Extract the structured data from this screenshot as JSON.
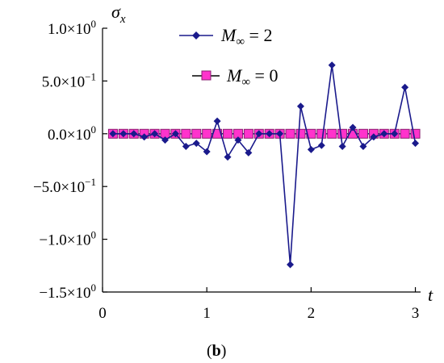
{
  "chart_data": {
    "type": "line",
    "xlabel": "t",
    "ylabel": "σx",
    "ylabel_main": "σ",
    "ylabel_sub": "x",
    "xlim": [
      0,
      3.05
    ],
    "ylim": [
      -1.5,
      1.0
    ],
    "x_ticks": [
      {
        "value": 0,
        "label": "0"
      },
      {
        "value": 1,
        "label": "1"
      },
      {
        "value": 2,
        "label": "2"
      },
      {
        "value": 3,
        "label": "3"
      }
    ],
    "y_ticks": [
      {
        "value": 1.0,
        "mant": "1.0",
        "exp": "0"
      },
      {
        "value": 0.5,
        "mant": "5.0",
        "exp": "−1"
      },
      {
        "value": 0.0,
        "mant": "0.0",
        "exp": "0"
      },
      {
        "value": -0.5,
        "mant": "−5.0",
        "exp": "−1"
      },
      {
        "value": -1.0,
        "mant": "−1.0",
        "exp": "0"
      },
      {
        "value": -1.5,
        "mant": "−1.5",
        "exp": "0"
      }
    ],
    "times_sign": "×10",
    "legend_placement": "top",
    "panel_label": "(b)",
    "series": [
      {
        "name_main": "M",
        "name_sub": "∞",
        "name_rest": " = 2",
        "color": "#1a1a8c",
        "marker": "diamond",
        "x": [
          0.1,
          0.2,
          0.3,
          0.4,
          0.5,
          0.6,
          0.7,
          0.8,
          0.9,
          1.0,
          1.1,
          1.2,
          1.3,
          1.4,
          1.5,
          1.6,
          1.7,
          1.8,
          1.9,
          2.0,
          2.1,
          2.2,
          2.3,
          2.4,
          2.5,
          2.6,
          2.7,
          2.8,
          2.9,
          3.0
        ],
        "y": [
          0.0,
          0.0,
          0.0,
          -0.03,
          0.0,
          -0.06,
          0.0,
          -0.12,
          -0.09,
          -0.17,
          0.12,
          -0.22,
          -0.06,
          -0.18,
          0.0,
          0.0,
          0.0,
          -1.24,
          0.26,
          -0.15,
          -0.11,
          0.65,
          -0.12,
          0.06,
          -0.12,
          -0.03,
          0.0,
          0.0,
          0.44,
          -0.09
        ]
      },
      {
        "name_main": "M",
        "name_sub": "∞",
        "name_rest": " = 0",
        "color": "#ff33cc",
        "marker": "square",
        "x": [
          0.1,
          0.2,
          0.3,
          0.4,
          0.5,
          0.6,
          0.7,
          0.8,
          0.9,
          1.0,
          1.1,
          1.2,
          1.3,
          1.4,
          1.5,
          1.6,
          1.7,
          1.8,
          1.9,
          2.0,
          2.1,
          2.2,
          2.3,
          2.4,
          2.5,
          2.6,
          2.7,
          2.8,
          2.9,
          3.0
        ],
        "y": [
          0,
          0,
          0,
          0,
          0,
          0,
          0,
          0,
          0,
          0,
          0,
          0,
          0,
          0,
          0,
          0,
          0,
          0,
          0,
          0,
          0,
          0,
          0,
          0,
          0,
          0,
          0,
          0,
          0,
          0
        ]
      }
    ]
  }
}
